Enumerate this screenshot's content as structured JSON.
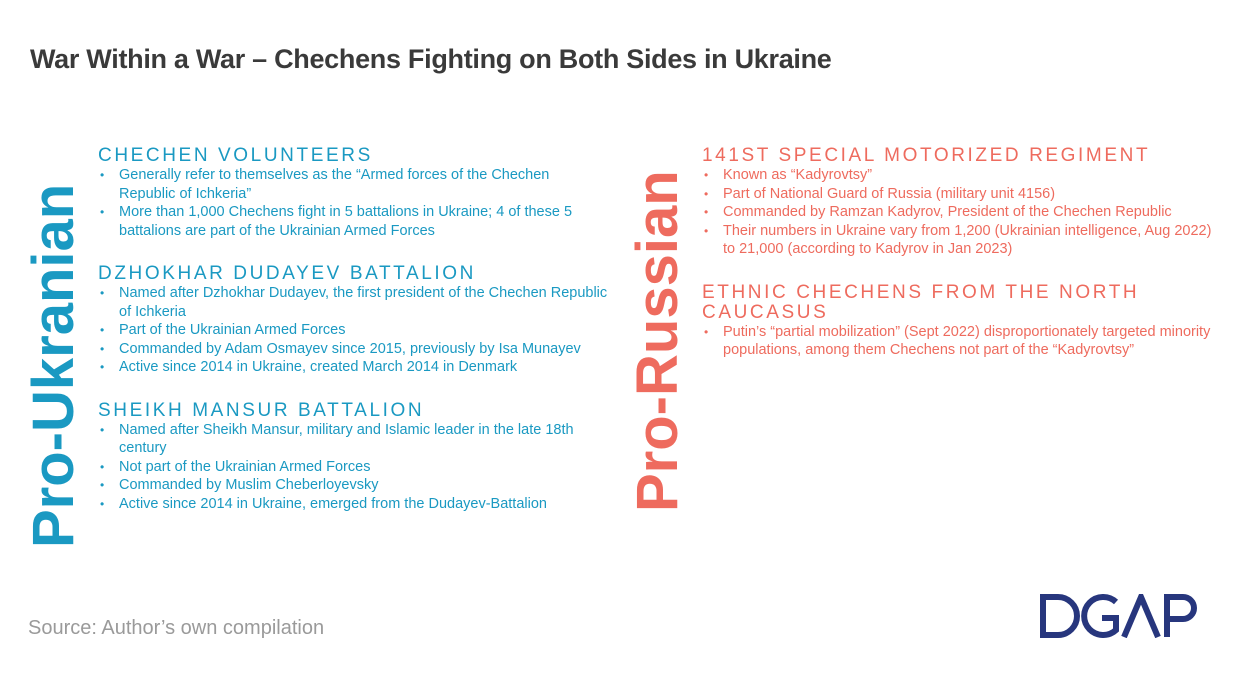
{
  "title": "War Within a War – Chechens Fighting on Both Sides in Ukraine",
  "ukr": {
    "label": "Pro-Ukranian",
    "sections": [
      {
        "title": "CHECHEN VOLUNTEERS",
        "items": [
          "Generally refer to themselves as the “Armed forces of the Chechen Republic of Ichkeria”",
          "More than 1,000 Chechens fight in 5 battalions in Ukraine; 4 of these 5 battalions are part of the Ukrainian Armed Forces"
        ]
      },
      {
        "title": "DZHOKHAR DUDAYEV BATTALION",
        "items": [
          "Named after Dzhokhar Dudayev, the first president of the Chechen Republic of Ichkeria",
          "Part of the Ukrainian Armed Forces",
          "Commanded by Adam Osmayev since 2015, previously by Isa Munayev",
          "Active since 2014 in Ukraine, created March 2014 in Denmark"
        ]
      },
      {
        "title": "SHEIKH MANSUR BATTALION",
        "items": [
          "Named after Sheikh Mansur, military and Islamic leader in the late 18th century",
          "Not part of the Ukrainian Armed Forces",
          "Commanded by Muslim Cheberloyevsky",
          "Active since 2014 in Ukraine, emerged from the Dudayev-Battalion"
        ]
      }
    ]
  },
  "rus": {
    "label": "Pro-Russian",
    "sections": [
      {
        "title": "141ST SPECIAL MOTORIZED REGIMENT",
        "items": [
          "Known as “Kadyrovtsy”",
          "Part of National Guard of Russia (military unit 4156)",
          "Commanded by Ramzan Kadyrov, President of the Chechen Republic",
          "Their numbers in Ukraine vary from 1,200 (Ukrainian intelligence, Aug 2022) to 21,000 (according to Kadyrov in Jan 2023)"
        ]
      },
      {
        "title": "ETHNIC CHECHENS FROM THE NORTH CAUCASUS",
        "items": [
          "Putin’s “partial mobilization” (Sept 2022) disproportionately targeted minority populations, among them Chechens not part of the “Kadyrovtsy”"
        ]
      }
    ]
  },
  "footer": {
    "source": "Source: Author’s own compilation",
    "logo_text": "DGAP",
    "logo_color": "#27367d"
  },
  "colors": {
    "pro_ukrainian": "#1a99c2",
    "pro_russian": "#ee6b5e"
  }
}
